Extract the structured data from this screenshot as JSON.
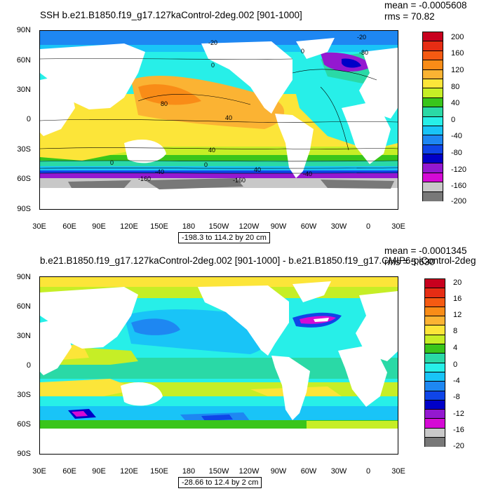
{
  "panels": [
    {
      "title": "SSH b.e21.B1850.f19_g17.127kaControl-2deg.002 [901-1000]",
      "mean": "mean = -0.0005608",
      "rms": "rms = 70.82",
      "lat_labels": [
        "90N",
        "60N",
        "30N",
        "0",
        "30S",
        "60S",
        "90S"
      ],
      "lon_labels": [
        "30E",
        "60E",
        "90E",
        "120E",
        "150E",
        "180",
        "150W",
        "120W",
        "90W",
        "60W",
        "30W",
        "0",
        "30E"
      ],
      "contour_info": "-198.3 to 114.2 by 20 cm",
      "contour_labels": [
        "-20",
        "0",
        "-20",
        "0",
        "80",
        "40",
        "40",
        "0",
        "40",
        "0",
        "-40",
        "-160",
        "-160",
        "-40",
        "-80"
      ],
      "colorbar_labels": [
        "200",
        "160",
        "120",
        "80",
        "40",
        "0",
        "-40",
        "-80",
        "-120",
        "-160",
        "-200"
      ],
      "colors": [
        "#c8001e",
        "#e62d14",
        "#f55a12",
        "#f98c17",
        "#fbb333",
        "#fce539",
        "#c6ee26",
        "#39c51b",
        "#2ad9a6",
        "#27efe8",
        "#19c4f7",
        "#1e87f2",
        "#0f45e8",
        "#0000c8",
        "#9418d0",
        "#d50ad5",
        "#c8c8c8",
        "#787878"
      ]
    },
    {
      "title": "b.e21.B1850.f19_g17.127kaControl-2deg.002 [901-1000] - b.e21.B1850.f19_g17.CMIP6-piControl-2deg",
      "mean": "mean = -0.0001345",
      "rms": "rms = 5.630",
      "lat_labels": [
        "90N",
        "60N",
        "30N",
        "0",
        "30S",
        "60S",
        "90S"
      ],
      "lon_labels": [
        "30E",
        "60E",
        "90E",
        "120E",
        "150E",
        "180",
        "150W",
        "120W",
        "90W",
        "60W",
        "30W",
        "0",
        "30E"
      ],
      "contour_info": "-28.66 to 12.4 by 2 cm",
      "colorbar_labels": [
        "20",
        "16",
        "12",
        "8",
        "4",
        "0",
        "-4",
        "-8",
        "-12",
        "-16",
        "-20"
      ],
      "colors": [
        "#c8001e",
        "#e62d14",
        "#f55a12",
        "#f98c17",
        "#fbb333",
        "#fce539",
        "#c6ee26",
        "#39c51b",
        "#2ad9a6",
        "#27efe8",
        "#19c4f7",
        "#1e87f2",
        "#0f45e8",
        "#0000c8",
        "#9418d0",
        "#d50ad5",
        "#c8c8c8",
        "#787878"
      ]
    }
  ]
}
